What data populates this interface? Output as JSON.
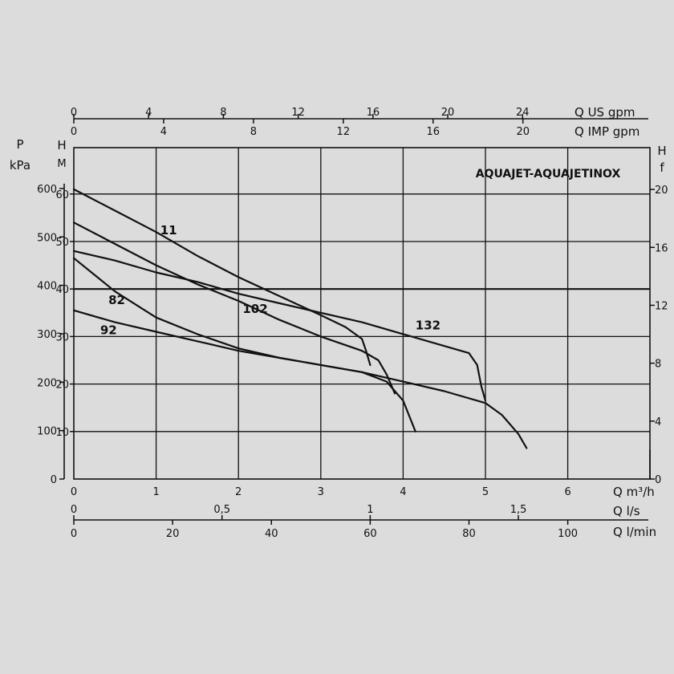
{
  "chart_data": {
    "type": "line",
    "title": "AQUAJET-AQUAJETINOX",
    "grid": true,
    "axes": {
      "x_main": {
        "label": "Q m³/h",
        "range": [
          0,
          7
        ],
        "ticks": [
          "0",
          "1",
          "2",
          "3",
          "4",
          "5",
          "6"
        ]
      },
      "x_ls": {
        "label": "Q l/s",
        "ticks": [
          {
            "value": 0,
            "text": "0"
          },
          {
            "value": 0.5,
            "text": "0,5"
          },
          {
            "value": 1,
            "text": "1"
          },
          {
            "value": 1.5,
            "text": "1,5"
          }
        ]
      },
      "x_lmin": {
        "label": "Q l/min",
        "ticks": [
          {
            "value": 0,
            "text": "0"
          },
          {
            "value": 20,
            "text": "20"
          },
          {
            "value": 40,
            "text": "40"
          },
          {
            "value": 60,
            "text": "60"
          },
          {
            "value": 80,
            "text": "80"
          },
          {
            "value": 100,
            "text": "100"
          }
        ]
      },
      "x_usgpm": {
        "label": "Q US gpm",
        "ticks": [
          {
            "value": 0,
            "text": "0"
          },
          {
            "value": 4,
            "text": "4"
          },
          {
            "value": 8,
            "text": "8"
          },
          {
            "value": 12,
            "text": "12"
          },
          {
            "value": 16,
            "text": "16"
          },
          {
            "value": 20,
            "text": "20"
          },
          {
            "value": 24,
            "text": "24"
          }
        ]
      },
      "x_impgpm": {
        "label": "Q IMP gpm",
        "ticks": [
          {
            "value": 0,
            "text": "0"
          },
          {
            "value": 4,
            "text": "4"
          },
          {
            "value": 8,
            "text": "8"
          },
          {
            "value": 12,
            "text": "12"
          },
          {
            "value": 16,
            "text": "16"
          },
          {
            "value": 20,
            "text": "20"
          }
        ]
      },
      "y_head": {
        "label_top": "H",
        "label_bottom": "M",
        "range": [
          0,
          70
        ],
        "ticks": [
          "10",
          "20",
          "30",
          "40",
          "50",
          "60"
        ]
      },
      "y_kpa": {
        "label_top": "P",
        "label_bottom": "kPa",
        "ticks": [
          {
            "value": 0,
            "text": "0"
          },
          {
            "value": 100,
            "text": "100"
          },
          {
            "value": 200,
            "text": "200"
          },
          {
            "value": 300,
            "text": "300"
          },
          {
            "value": 400,
            "text": "400"
          },
          {
            "value": 500,
            "text": "500"
          },
          {
            "value": 600,
            "text": "600"
          }
        ]
      },
      "y_ft": {
        "label_top": "H",
        "label_bottom": "f",
        "ticks": [
          {
            "value": 0,
            "text": "0"
          },
          {
            "value": 4,
            "text": "4"
          },
          {
            "value": 8,
            "text": "8"
          },
          {
            "value": 12,
            "text": "12"
          },
          {
            "value": 16,
            "text": "16"
          },
          {
            "value": 20,
            "text": "20"
          }
        ]
      }
    },
    "series": [
      {
        "name": "11",
        "label_at": [
          1.05,
          51.5
        ],
        "x": [
          0,
          0.5,
          1,
          1.5,
          2,
          2.5,
          3,
          3.3,
          3.5,
          3.55,
          3.6
        ],
        "y": [
          61,
          56.5,
          52,
          47,
          42.5,
          38.5,
          34.5,
          32,
          29.5,
          27,
          24
        ]
      },
      {
        "name": "102",
        "label_at": [
          2.05,
          35
        ],
        "x": [
          0,
          0.5,
          1,
          1.5,
          2,
          2.5,
          3,
          3.5,
          3.7,
          3.8,
          3.9
        ],
        "y": [
          54,
          49.5,
          45,
          41,
          37.5,
          33.5,
          30,
          27,
          25,
          22,
          18
        ]
      },
      {
        "name": "132",
        "label_at": [
          4.15,
          31.5
        ],
        "x": [
          0,
          0.5,
          1,
          1.5,
          2,
          2.5,
          3,
          3.5,
          4,
          4.5,
          4.8,
          4.9,
          4.95,
          5.0
        ],
        "y": [
          48,
          46,
          43.5,
          41.5,
          39,
          37,
          35,
          33,
          30.5,
          28,
          26.5,
          24,
          19.5,
          16.5
        ]
      },
      {
        "name": "82",
        "label_at": [
          0.42,
          36.8
        ],
        "x": [
          0,
          0.5,
          1,
          1.5,
          2,
          2.5,
          3,
          3.5,
          3.8,
          4.0,
          4.15
        ],
        "y": [
          46.5,
          39.5,
          34,
          30.5,
          27.5,
          25.5,
          24,
          22.5,
          20.5,
          16.5,
          10
        ]
      },
      {
        "name": "92",
        "label_at": [
          0.32,
          30.5
        ],
        "x": [
          0,
          0.5,
          1,
          1.5,
          2,
          2.5,
          3,
          3.5,
          4,
          4.5,
          5,
          5.2,
          5.4,
          5.5
        ],
        "y": [
          35.5,
          33,
          31,
          29,
          27,
          25.5,
          24,
          22.5,
          20.5,
          18.5,
          16,
          13.5,
          9.5,
          6.5
        ]
      }
    ]
  }
}
